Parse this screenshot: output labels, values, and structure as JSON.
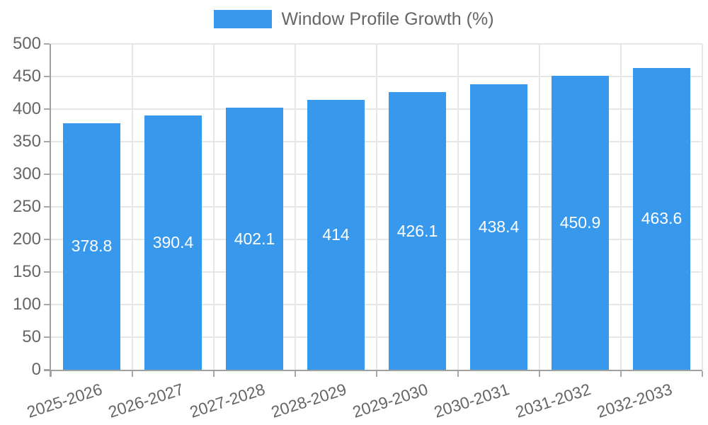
{
  "chart_data": {
    "type": "bar",
    "title": "Window Profile Growth (%)",
    "legend_position": "top",
    "categories": [
      "2025-2026",
      "2026-2027",
      "2027-2028",
      "2028-2029",
      "2029-2030",
      "2030-2031",
      "2031-2032",
      "2032-2033"
    ],
    "series": [
      {
        "name": "Window Profile Growth (%)",
        "values": [
          378.8,
          390.4,
          402.1,
          414,
          426.1,
          438.4,
          450.9,
          463.6
        ],
        "data_labels": [
          "378.8",
          "390.4",
          "402.1",
          "414",
          "426.1",
          "438.4",
          "450.9",
          "463.6"
        ]
      }
    ],
    "xlabel": "",
    "ylabel": "",
    "ylim": [
      0,
      500
    ],
    "ytick_step": 50,
    "yticks": [
      0,
      50,
      100,
      150,
      200,
      250,
      300,
      350,
      400,
      450,
      500
    ],
    "grid": true,
    "colors": {
      "bar": "#3899EC",
      "bar_value_text": "#ffffff",
      "axis_text": "#666666",
      "gridline": "#e7e7e7",
      "axis_line": "#a0a0a0",
      "background": "#ffffff"
    }
  }
}
